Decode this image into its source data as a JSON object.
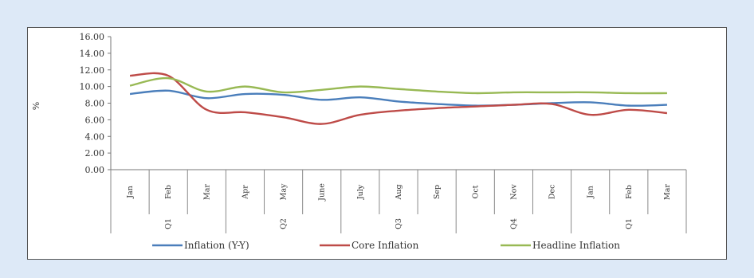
{
  "chart_data": {
    "type": "line",
    "title": "",
    "xlabel": "",
    "ylabel": "%",
    "ylim": [
      0,
      16
    ],
    "y_ticks": [
      "0.00",
      "2.00",
      "4.00",
      "6.00",
      "8.00",
      "10.00",
      "12.00",
      "14.00",
      "16.00"
    ],
    "categories": [
      "Jan",
      "Feb",
      "Mar",
      "Apr",
      "May",
      "June",
      "July",
      "Aug",
      "Sep",
      "Oct",
      "Nov",
      "Dec",
      "Jan",
      "Feb",
      "Mar"
    ],
    "groups": [
      {
        "label": "Q1",
        "span": 3
      },
      {
        "label": "Q2",
        "span": 3
      },
      {
        "label": "Q3",
        "span": 3
      },
      {
        "label": "Q4",
        "span": 3
      },
      {
        "label": "Q1",
        "span": 3
      }
    ],
    "series": [
      {
        "name": "Inflation (Y-Y)",
        "color": "#4a7ebb",
        "values": [
          9.1,
          9.5,
          8.6,
          9.1,
          9.0,
          8.4,
          8.7,
          8.2,
          7.9,
          7.7,
          7.8,
          8.0,
          8.1,
          7.7,
          7.8
        ]
      },
      {
        "name": "Core Inflation",
        "color": "#be4b48",
        "values": [
          11.3,
          11.3,
          7.2,
          6.9,
          6.3,
          5.5,
          6.6,
          7.1,
          7.4,
          7.6,
          7.8,
          7.9,
          6.6,
          7.2,
          6.8
        ]
      },
      {
        "name": "Headline Inflation",
        "color": "#98b954",
        "values": [
          10.1,
          11.0,
          9.4,
          10.0,
          9.3,
          9.6,
          10.0,
          9.7,
          9.4,
          9.2,
          9.3,
          9.3,
          9.3,
          9.2,
          9.2
        ]
      }
    ],
    "legend_position": "bottom",
    "grid": false
  }
}
